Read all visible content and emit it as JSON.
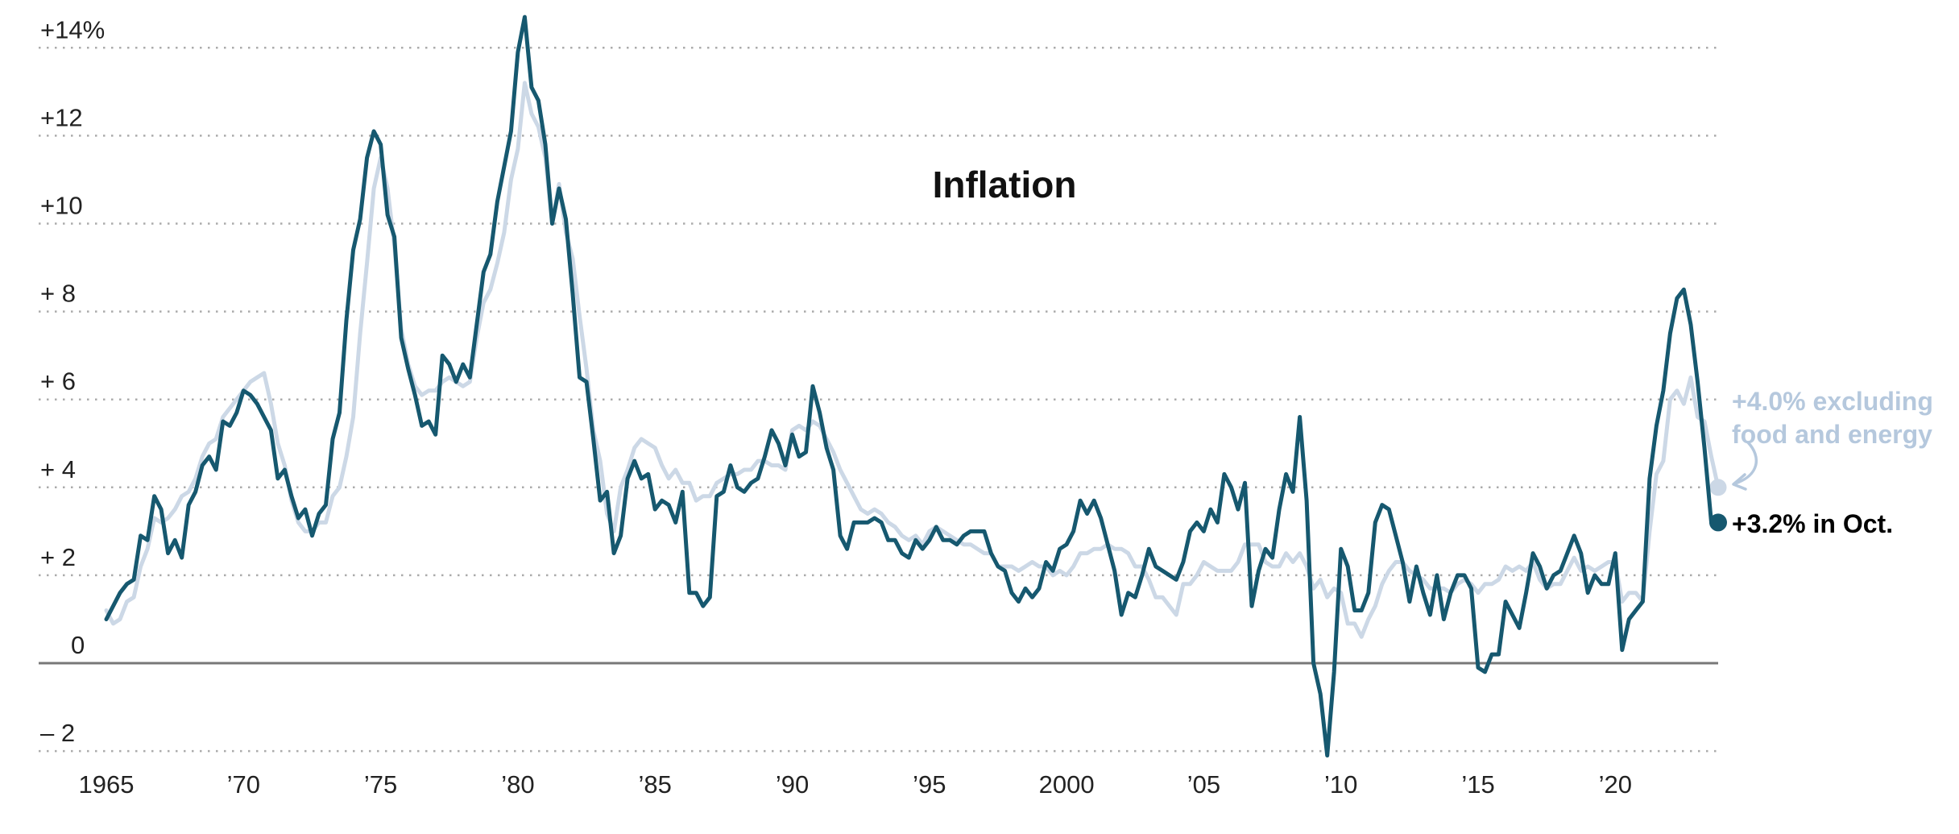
{
  "title": "Inflation",
  "annotations": {
    "core_label": {
      "line1": "+4.0% excluding",
      "line2": "food and energy"
    },
    "headline_label": {
      "text": "+3.2% in Oct."
    }
  },
  "colors": {
    "headline_line": "#16586f",
    "core_line": "#ccd8e6",
    "core_text": "#b5c8dd",
    "grid": "#ababab",
    "zero_line": "#787878",
    "axis_text": "#222222",
    "title_text": "#111111"
  },
  "chart_data": {
    "type": "line",
    "title": "Inflation",
    "x_start_year": 1965,
    "x_end": "Oct 2023",
    "points_per_year": 4,
    "ylim": [
      -3,
      15.2
    ],
    "grid": "dotted horizontal, solid zero line",
    "legend_position": "annotations at right edge",
    "yticks": [
      {
        "value": 14,
        "label": "+14%"
      },
      {
        "value": 12,
        "label": "+12"
      },
      {
        "value": 10,
        "label": "+10"
      },
      {
        "value": 8,
        "label": "+ 8"
      },
      {
        "value": 6,
        "label": "+ 6"
      },
      {
        "value": 4,
        "label": "+ 4"
      },
      {
        "value": 2,
        "label": "+ 2"
      },
      {
        "value": 0,
        "label": "0"
      },
      {
        "value": -2,
        "label": "– 2"
      }
    ],
    "xticks": [
      {
        "year": 1965,
        "label": "1965"
      },
      {
        "year": 1970,
        "label": "’70"
      },
      {
        "year": 1975,
        "label": "’75"
      },
      {
        "year": 1980,
        "label": "’80"
      },
      {
        "year": 1985,
        "label": "’85"
      },
      {
        "year": 1990,
        "label": "’90"
      },
      {
        "year": 1995,
        "label": "’95"
      },
      {
        "year": 2000,
        "label": "2000"
      },
      {
        "year": 2005,
        "label": "’05"
      },
      {
        "year": 2010,
        "label": "’10"
      },
      {
        "year": 2015,
        "label": "’15"
      },
      {
        "year": 2020,
        "label": "’20"
      }
    ],
    "series": [
      {
        "name": "core",
        "end_value": 4.0,
        "values": [
          1.2,
          0.9,
          1.0,
          1.4,
          1.5,
          2.2,
          2.6,
          3.3,
          3.2,
          3.3,
          3.5,
          3.8,
          3.9,
          4.2,
          4.7,
          5.0,
          5.1,
          5.6,
          5.8,
          6.0,
          6.2,
          6.4,
          6.5,
          6.6,
          5.9,
          5.0,
          4.5,
          3.7,
          3.2,
          3.0,
          3.0,
          3.2,
          3.2,
          3.8,
          4.0,
          4.7,
          5.6,
          7.5,
          9.1,
          10.8,
          11.5,
          10.8,
          9.5,
          7.6,
          6.8,
          6.3,
          6.1,
          6.2,
          6.2,
          6.4,
          6.5,
          6.4,
          6.3,
          6.4,
          7.4,
          8.2,
          8.5,
          9.1,
          9.8,
          11.0,
          11.7,
          13.2,
          12.5,
          12.2,
          11.5,
          10.0,
          10.9,
          9.8,
          9.2,
          7.9,
          6.7,
          5.3,
          4.6,
          3.4,
          3.0,
          4.0,
          4.4,
          4.9,
          5.1,
          5.0,
          4.9,
          4.5,
          4.2,
          4.4,
          4.1,
          4.1,
          3.7,
          3.8,
          3.8,
          4.1,
          4.2,
          4.3,
          4.3,
          4.4,
          4.4,
          4.6,
          4.6,
          4.5,
          4.5,
          4.4,
          5.3,
          5.4,
          5.3,
          5.5,
          5.4,
          5.1,
          4.8,
          4.4,
          4.1,
          3.8,
          3.5,
          3.4,
          3.5,
          3.4,
          3.2,
          3.1,
          2.9,
          2.8,
          2.9,
          2.7,
          3.0,
          3.1,
          3.0,
          2.9,
          2.8,
          2.7,
          2.7,
          2.6,
          2.5,
          2.5,
          2.2,
          2.2,
          2.2,
          2.1,
          2.2,
          2.3,
          2.2,
          2.2,
          2.0,
          2.1,
          2.0,
          2.2,
          2.5,
          2.5,
          2.6,
          2.6,
          2.7,
          2.6,
          2.6,
          2.5,
          2.2,
          2.2,
          1.9,
          1.5,
          1.5,
          1.3,
          1.1,
          1.8,
          1.8,
          2.0,
          2.3,
          2.2,
          2.1,
          2.1,
          2.1,
          2.3,
          2.7,
          2.7,
          2.7,
          2.3,
          2.2,
          2.2,
          2.5,
          2.3,
          2.5,
          2.2,
          1.7,
          1.9,
          1.5,
          1.7,
          1.6,
          0.9,
          0.9,
          0.6,
          1.0,
          1.3,
          1.8,
          2.1,
          2.3,
          2.3,
          2.1,
          2.0,
          1.9,
          1.7,
          1.7,
          1.7,
          1.6,
          1.8,
          1.9,
          1.8,
          1.6,
          1.8,
          1.8,
          1.9,
          2.2,
          2.1,
          2.2,
          2.1,
          2.3,
          1.9,
          1.7,
          1.8,
          1.8,
          2.1,
          2.4,
          2.1,
          2.2,
          2.1,
          2.2,
          2.3,
          2.3,
          1.4,
          1.6,
          1.6,
          1.4,
          3.0,
          4.3,
          4.6,
          6.0,
          6.2,
          5.9,
          6.5,
          5.6,
          5.5,
          4.7,
          4.0
        ]
      },
      {
        "name": "headline",
        "end_value": 3.2,
        "values": [
          1.0,
          1.3,
          1.6,
          1.8,
          1.9,
          2.9,
          2.8,
          3.8,
          3.5,
          2.5,
          2.8,
          2.4,
          3.6,
          3.9,
          4.5,
          4.7,
          4.4,
          5.5,
          5.4,
          5.7,
          6.2,
          6.1,
          5.9,
          5.6,
          5.3,
          4.2,
          4.4,
          3.8,
          3.3,
          3.5,
          2.9,
          3.4,
          3.6,
          5.1,
          5.7,
          7.8,
          9.4,
          10.1,
          11.5,
          12.1,
          11.8,
          10.2,
          9.7,
          7.4,
          6.7,
          6.1,
          5.4,
          5.5,
          5.2,
          7.0,
          6.8,
          6.4,
          6.8,
          6.5,
          7.7,
          8.9,
          9.3,
          10.5,
          11.3,
          12.1,
          13.9,
          14.7,
          13.1,
          12.8,
          11.8,
          10.0,
          10.8,
          10.1,
          8.4,
          6.5,
          6.4,
          5.1,
          3.7,
          3.9,
          2.5,
          2.9,
          4.2,
          4.6,
          4.2,
          4.3,
          3.5,
          3.7,
          3.6,
          3.2,
          3.9,
          1.6,
          1.6,
          1.3,
          1.5,
          3.8,
          3.9,
          4.5,
          4.0,
          3.9,
          4.1,
          4.2,
          4.7,
          5.3,
          5.0,
          4.5,
          5.2,
          4.7,
          4.8,
          6.3,
          5.7,
          4.9,
          4.4,
          2.9,
          2.6,
          3.2,
          3.2,
          3.2,
          3.3,
          3.2,
          2.8,
          2.8,
          2.5,
          2.4,
          2.8,
          2.6,
          2.8,
          3.1,
          2.8,
          2.8,
          2.7,
          2.9,
          3.0,
          3.0,
          3.0,
          2.5,
          2.2,
          2.1,
          1.6,
          1.4,
          1.7,
          1.5,
          1.7,
          2.3,
          2.1,
          2.6,
          2.7,
          3.0,
          3.7,
          3.4,
          3.7,
          3.3,
          2.7,
          2.1,
          1.1,
          1.6,
          1.5,
          2.0,
          2.6,
          2.2,
          2.1,
          2.0,
          1.9,
          2.3,
          3.0,
          3.2,
          3.0,
          3.5,
          3.2,
          4.3,
          4.0,
          3.5,
          4.1,
          1.3,
          2.1,
          2.6,
          2.4,
          3.5,
          4.3,
          3.9,
          5.6,
          3.7,
          0.0,
          -0.7,
          -2.1,
          -0.2,
          2.6,
          2.2,
          1.2,
          1.2,
          1.6,
          3.2,
          3.6,
          3.5,
          2.9,
          2.3,
          1.4,
          2.2,
          1.6,
          1.1,
          2.0,
          1.0,
          1.6,
          2.0,
          2.0,
          1.7,
          -0.1,
          -0.2,
          0.2,
          0.2,
          1.4,
          1.1,
          0.8,
          1.6,
          2.5,
          2.2,
          1.7,
          2.0,
          2.1,
          2.5,
          2.9,
          2.5,
          1.6,
          2.0,
          1.8,
          1.8,
          2.5,
          0.3,
          1.0,
          1.2,
          1.4,
          4.2,
          5.4,
          6.2,
          7.5,
          8.3,
          8.5,
          7.7,
          6.4,
          4.9,
          3.2,
          3.2
        ]
      }
    ]
  }
}
